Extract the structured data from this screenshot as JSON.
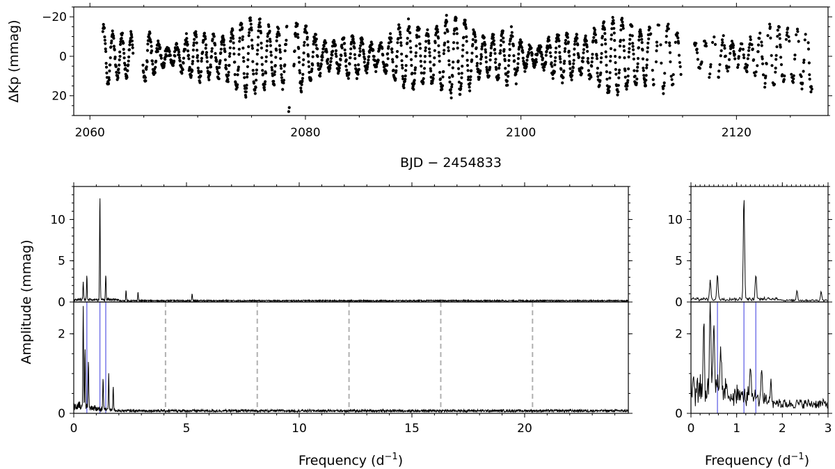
{
  "figure": {
    "top_ylabel": "ΔKp (mmag)",
    "top_xlabel": "BJD − 2454833",
    "bottom_ylabel": "Amplitude (mmag)",
    "freq_label_main": "Frequency (d",
    "freq_label_sup": "−1",
    "freq_label_close": ")"
  },
  "chart_data": [
    {
      "type": "scatter",
      "id": "light-curve",
      "xlabel": "BJD − 2454833",
      "ylabel": "ΔKp (mmag)",
      "xlim": [
        2058.5,
        2128.5
      ],
      "ylim": [
        30,
        -25
      ],
      "y_inverted": true,
      "xticks": [
        2060,
        2080,
        2100,
        2120
      ],
      "yticks": [
        -20,
        0,
        20
      ],
      "data_span_x": [
        2061.2,
        2127.0
      ],
      "y_range_data": [
        -22,
        28
      ],
      "dominant_period_d": 0.86,
      "gaps": [
        [
          2064.0,
          2064.9
        ],
        [
          2078.3,
          2078.9
        ],
        [
          2114.9,
          2116.0
        ]
      ],
      "marker": "dot",
      "color": "#000000"
    },
    {
      "type": "line",
      "id": "periodogram-full-original",
      "xlabel": "",
      "ylabel": "Amplitude (mmag)",
      "xlim": [
        0,
        24.6
      ],
      "ylim": [
        0,
        14
      ],
      "xticks": [
        0,
        5,
        10,
        15,
        20
      ],
      "yticks": [
        0,
        5,
        10
      ],
      "peaks": [
        {
          "f": 1.16,
          "a": 12.6
        },
        {
          "f": 0.58,
          "a": 2.9
        },
        {
          "f": 1.42,
          "a": 3.1
        },
        {
          "f": 0.42,
          "a": 2.2
        },
        {
          "f": 2.32,
          "a": 1.2
        },
        {
          "f": 2.85,
          "a": 1.1
        },
        {
          "f": 5.25,
          "a": 0.8
        }
      ],
      "noise_level": 0.2
    },
    {
      "type": "line",
      "id": "periodogram-full-prewhitened",
      "xlabel": "Frequency (d⁻¹)",
      "ylabel": "Amplitude (mmag)",
      "xlim": [
        0,
        24.6
      ],
      "ylim": [
        0,
        2.8
      ],
      "xticks": [
        0,
        5,
        10,
        15,
        20
      ],
      "yticks": [
        0,
        2
      ],
      "blue_lines": [
        0.58,
        1.16,
        1.42
      ],
      "dashed_lines": [
        4.07,
        8.14,
        12.21,
        16.28,
        20.35
      ],
      "peaks": [
        {
          "f": 0.42,
          "a": 2.5
        },
        {
          "f": 0.5,
          "a": 1.5
        },
        {
          "f": 0.65,
          "a": 1.2
        },
        {
          "f": 1.55,
          "a": 0.9
        },
        {
          "f": 1.3,
          "a": 0.8
        },
        {
          "f": 1.75,
          "a": 0.6
        }
      ],
      "noise_level": 0.08
    },
    {
      "type": "line",
      "id": "periodogram-zoom-original",
      "xlabel": "",
      "ylabel": "",
      "xlim": [
        0,
        3
      ],
      "ylim": [
        0,
        14
      ],
      "xticks": [
        0,
        1,
        2,
        3
      ],
      "yticks": [
        0,
        5,
        10
      ],
      "peaks": [
        {
          "f": 1.16,
          "a": 12.6
        },
        {
          "f": 0.58,
          "a": 2.9
        },
        {
          "f": 1.42,
          "a": 3.1
        },
        {
          "f": 0.42,
          "a": 2.2
        },
        {
          "f": 2.32,
          "a": 1.2
        },
        {
          "f": 2.85,
          "a": 1.1
        }
      ],
      "noise_level": 0.25
    },
    {
      "type": "line",
      "id": "periodogram-zoom-prewhitened",
      "xlabel": "Frequency (d⁻¹)",
      "ylabel": "",
      "xlim": [
        0,
        3
      ],
      "ylim": [
        0,
        2.8
      ],
      "xticks": [
        0,
        1,
        2,
        3
      ],
      "yticks": [
        0,
        2
      ],
      "blue_lines": [
        0.58,
        1.16,
        1.42
      ],
      "peaks": [
        {
          "f": 0.42,
          "a": 2.5
        },
        {
          "f": 0.5,
          "a": 1.5
        },
        {
          "f": 0.65,
          "a": 1.2
        },
        {
          "f": 0.28,
          "a": 1.6
        },
        {
          "f": 1.55,
          "a": 0.9
        },
        {
          "f": 1.3,
          "a": 0.8
        },
        {
          "f": 1.75,
          "a": 0.6
        }
      ],
      "noise_level": 0.3
    }
  ]
}
